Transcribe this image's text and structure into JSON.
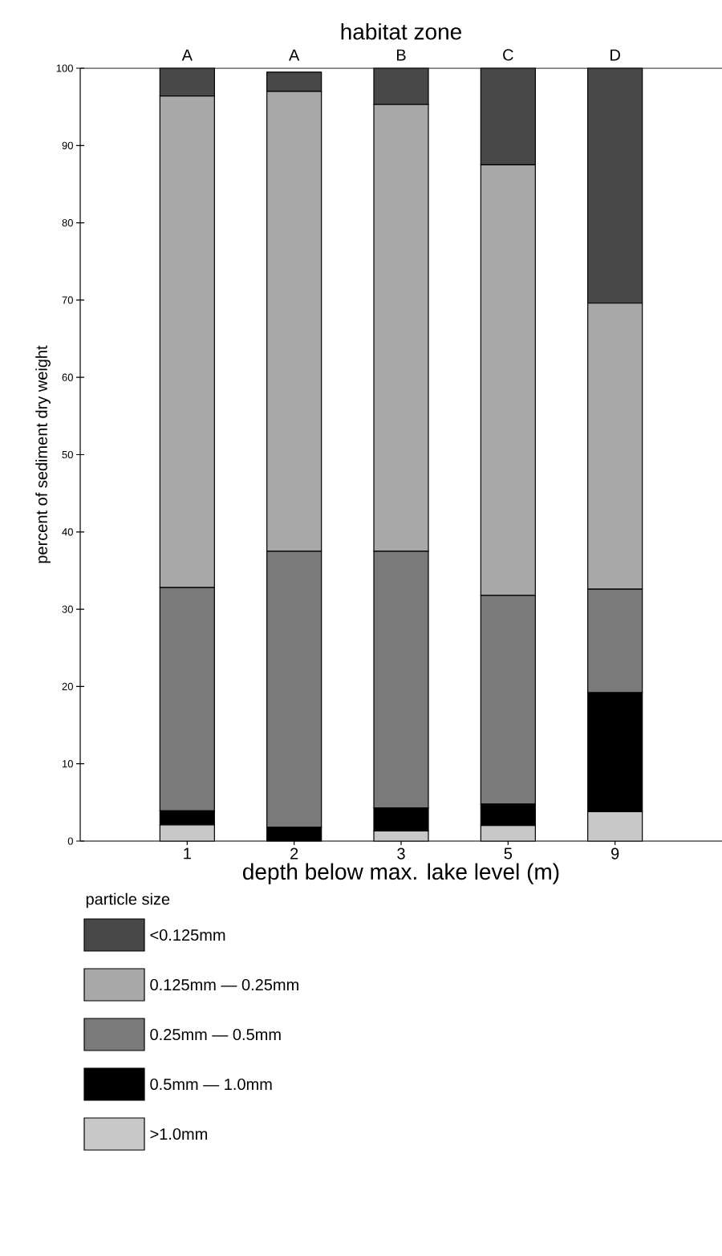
{
  "chart_data": {
    "type": "bar",
    "stacked": true,
    "xlabel": "depth below max. lake level (m)",
    "ylabel": "percent of sediment dry weight",
    "x2label": "habitat zone",
    "legend_title": "particle size",
    "categories": [
      "1",
      "2",
      "3",
      "5",
      "9"
    ],
    "ylim": [
      0,
      100
    ],
    "yticks": [
      0,
      10,
      20,
      30,
      40,
      50,
      60,
      70,
      80,
      90,
      100
    ],
    "series": [
      {
        "name": ">1.0mm",
        "color": "#c8c8c8",
        "values": [
          2.1,
          0,
          1.3,
          2.0,
          3.8
        ]
      },
      {
        "name": "0.5mm — 1.0mm",
        "color": "#000000",
        "values": [
          1.8,
          1.8,
          3.0,
          2.8,
          15.4
        ]
      },
      {
        "name": "0.25mm — 0.5mm",
        "color": "#7a7a7a",
        "values": [
          28.9,
          35.7,
          33.2,
          27.0,
          13.4
        ]
      },
      {
        "name": "0.125mm — 0.25mm",
        "color": "#a8a8a8",
        "values": [
          63.6,
          59.5,
          57.8,
          55.7,
          37.0
        ]
      },
      {
        "name": "<0.125mm",
        "color": "#484848",
        "values": [
          3.6,
          2.5,
          4.7,
          12.5,
          30.4
        ]
      }
    ],
    "annotations": [
      "A",
      "A",
      "B",
      "C",
      "D"
    ],
    "grid": false,
    "legend": "bottom"
  }
}
